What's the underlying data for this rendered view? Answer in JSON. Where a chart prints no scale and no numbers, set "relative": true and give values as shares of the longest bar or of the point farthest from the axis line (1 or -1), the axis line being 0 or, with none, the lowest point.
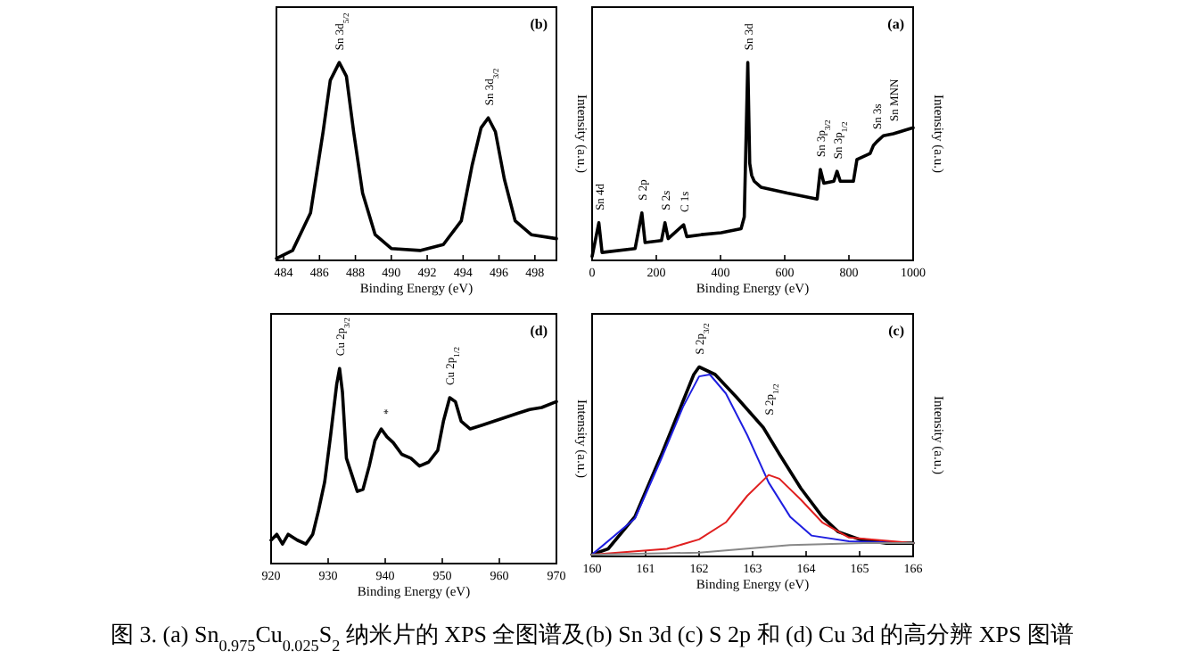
{
  "chart_data": [
    {
      "type": "line",
      "title": "(b)",
      "xlabel": "Binding Energy (eV)",
      "ylabel": "Intensity (a.u.)",
      "relative": true,
      "xlim": [
        483.6,
        499.2
      ],
      "xticks": [
        484,
        486,
        488,
        490,
        492,
        494,
        496,
        498
      ],
      "series": [
        {
          "color": "#000000",
          "x": [
            483.6,
            484.5,
            485.5,
            486.2,
            486.6,
            487.1,
            487.5,
            487.9,
            488.4,
            489.1,
            490.0,
            491.6,
            492.9,
            493.9,
            494.5,
            495.0,
            495.4,
            495.8,
            496.3,
            496.9,
            497.8,
            499.2
          ],
          "values": [
            0.01,
            0.05,
            0.24,
            0.65,
            0.91,
            1.0,
            0.93,
            0.65,
            0.34,
            0.13,
            0.06,
            0.05,
            0.08,
            0.2,
            0.48,
            0.67,
            0.72,
            0.65,
            0.41,
            0.2,
            0.13,
            0.11
          ]
        }
      ],
      "annotations": [
        {
          "text": "Sn 3d$_{5/2}$",
          "x": 487.1,
          "y": 1.0
        },
        {
          "text": "Sn 3d$_{3/2}$",
          "x": 495.4,
          "y": 0.72
        }
      ]
    },
    {
      "type": "line",
      "title": "(a)",
      "xlabel": "Binding Energy (eV)",
      "ylabel": "Intensity (a.u.)",
      "relative": true,
      "xlim": [
        0,
        1000
      ],
      "xticks": [
        0,
        200,
        400,
        600,
        800,
        1000
      ],
      "series": [
        {
          "color": "#000000",
          "x": [
            0,
            21,
            31,
            134,
            155,
            165,
            216,
            227,
            237,
            285,
            295,
            340,
            402,
            464,
            474,
            485,
            491,
            497,
            505,
            526,
            608,
            701,
            711,
            722,
            753,
            763,
            773,
            814,
            825,
            866,
            876,
            887,
            907,
            938,
            959,
            979,
            1000
          ],
          "values": [
            0.02,
            0.19,
            0.04,
            0.06,
            0.24,
            0.09,
            0.1,
            0.19,
            0.11,
            0.18,
            0.12,
            0.13,
            0.14,
            0.16,
            0.22,
            1.0,
            0.49,
            0.43,
            0.4,
            0.37,
            0.34,
            0.31,
            0.46,
            0.39,
            0.4,
            0.45,
            0.4,
            0.4,
            0.51,
            0.54,
            0.58,
            0.6,
            0.63,
            0.64,
            0.65,
            0.66,
            0.67
          ]
        }
      ],
      "annotations": [
        {
          "text": "Sn 4d",
          "x": 21,
          "y": 0.19
        },
        {
          "text": "S 2p",
          "x": 155,
          "y": 0.24
        },
        {
          "text": "S 2s",
          "x": 227,
          "y": 0.19
        },
        {
          "text": "C 1s",
          "x": 285,
          "y": 0.18
        },
        {
          "text": "Sn 3d",
          "x": 485,
          "y": 1.0
        },
        {
          "text": "Sn 3p$_{3/2}$",
          "x": 711,
          "y": 0.46
        },
        {
          "text": "Sn 3p$_{1/2}$",
          "x": 763,
          "y": 0.45
        },
        {
          "text": "Sn 3s",
          "x": 887,
          "y": 0.6
        },
        {
          "text": "Sn MNN",
          "x": 938,
          "y": 0.64
        }
      ]
    },
    {
      "type": "line",
      "title": "(d)",
      "xlabel": "Binding Energy (eV)",
      "ylabel": "Intensity (a.u.)",
      "relative": true,
      "xlim": [
        920,
        970
      ],
      "xticks": [
        920,
        930,
        940,
        950,
        960,
        970
      ],
      "series": [
        {
          "color": "#000000",
          "x": [
            920,
            921,
            922,
            923,
            924.6,
            926.1,
            927.3,
            928.3,
            929.4,
            930.4,
            931.5,
            932.0,
            932.5,
            933.2,
            934.1,
            935.1,
            936.1,
            937.2,
            938.2,
            939.3,
            940.3,
            941.4,
            942.9,
            944.5,
            946.0,
            947.6,
            949.2,
            950.2,
            951.3,
            952.3,
            953.3,
            954.9,
            957.0,
            959.1,
            961.1,
            963.2,
            965.3,
            967.4,
            970
          ],
          "values": [
            0.12,
            0.15,
            0.1,
            0.15,
            0.12,
            0.1,
            0.15,
            0.27,
            0.42,
            0.65,
            0.92,
            1.0,
            0.88,
            0.54,
            0.46,
            0.37,
            0.38,
            0.5,
            0.63,
            0.69,
            0.65,
            0.62,
            0.56,
            0.54,
            0.5,
            0.52,
            0.58,
            0.73,
            0.85,
            0.83,
            0.73,
            0.69,
            0.71,
            0.73,
            0.75,
            0.77,
            0.79,
            0.8,
            0.83
          ]
        }
      ],
      "annotations": [
        {
          "text": "Cu 2p$_{3/2}$",
          "x": 932.0,
          "y": 1.0
        },
        {
          "text": "*",
          "x": 940.3,
          "y": 0.7
        },
        {
          "text": "Cu 2p$_{1/2}$",
          "x": 951.3,
          "y": 0.85
        }
      ]
    },
    {
      "type": "line",
      "title": "(c)",
      "xlabel": "Binding Energy (eV)",
      "ylabel": "Intensity (a.u.)",
      "relative": true,
      "xlim": [
        160,
        166
      ],
      "xticks": [
        160,
        161,
        162,
        163,
        164,
        165,
        166
      ],
      "series": [
        {
          "color": "#000000",
          "x": [
            160.0,
            160.3,
            160.8,
            161.3,
            161.7,
            161.9,
            162.0,
            162.3,
            162.7,
            163.2,
            163.5,
            163.9,
            164.3,
            164.6,
            165.0,
            165.5,
            166.0
          ],
          "values": [
            0.01,
            0.04,
            0.21,
            0.54,
            0.82,
            0.96,
            1.0,
            0.96,
            0.84,
            0.68,
            0.54,
            0.36,
            0.21,
            0.13,
            0.09,
            0.07,
            0.07
          ]
        },
        {
          "color": "#1f1fe0",
          "x": [
            160.0,
            160.8,
            161.3,
            161.7,
            162.0,
            162.2,
            162.5,
            162.9,
            163.3,
            163.7,
            164.1,
            164.8,
            166.0
          ],
          "values": [
            0.01,
            0.2,
            0.52,
            0.79,
            0.95,
            0.96,
            0.86,
            0.64,
            0.39,
            0.21,
            0.11,
            0.08,
            0.07
          ]
        },
        {
          "color": "#e01f1f",
          "x": [
            160.0,
            161.4,
            162.0,
            162.5,
            162.9,
            163.3,
            163.5,
            163.9,
            164.3,
            164.8,
            166.0
          ],
          "values": [
            0.01,
            0.04,
            0.09,
            0.18,
            0.32,
            0.43,
            0.41,
            0.3,
            0.18,
            0.1,
            0.07
          ]
        },
        {
          "color": "#888888",
          "x": [
            160.0,
            162.0,
            163.7,
            165.1,
            166.0
          ],
          "values": [
            0.01,
            0.02,
            0.06,
            0.07,
            0.07
          ]
        }
      ],
      "annotations": [
        {
          "text": "S 2p$_{3/2}$",
          "x": 162.0,
          "y": 1.0
        },
        {
          "text": "S 2p$_{1/2}$",
          "x": 163.3,
          "y": 0.68
        }
      ]
    },
    {
      "type": "other",
      "title": "图 3. (a) Sn$_{0.975}$Cu$_{0.025}$S$_{2}$ 纳米片的 XPS 全图谱及(b) Sn 3d (c) S 2p 和 (d) Cu 3d 的高分辨 XPS 图谱"
    }
  ]
}
